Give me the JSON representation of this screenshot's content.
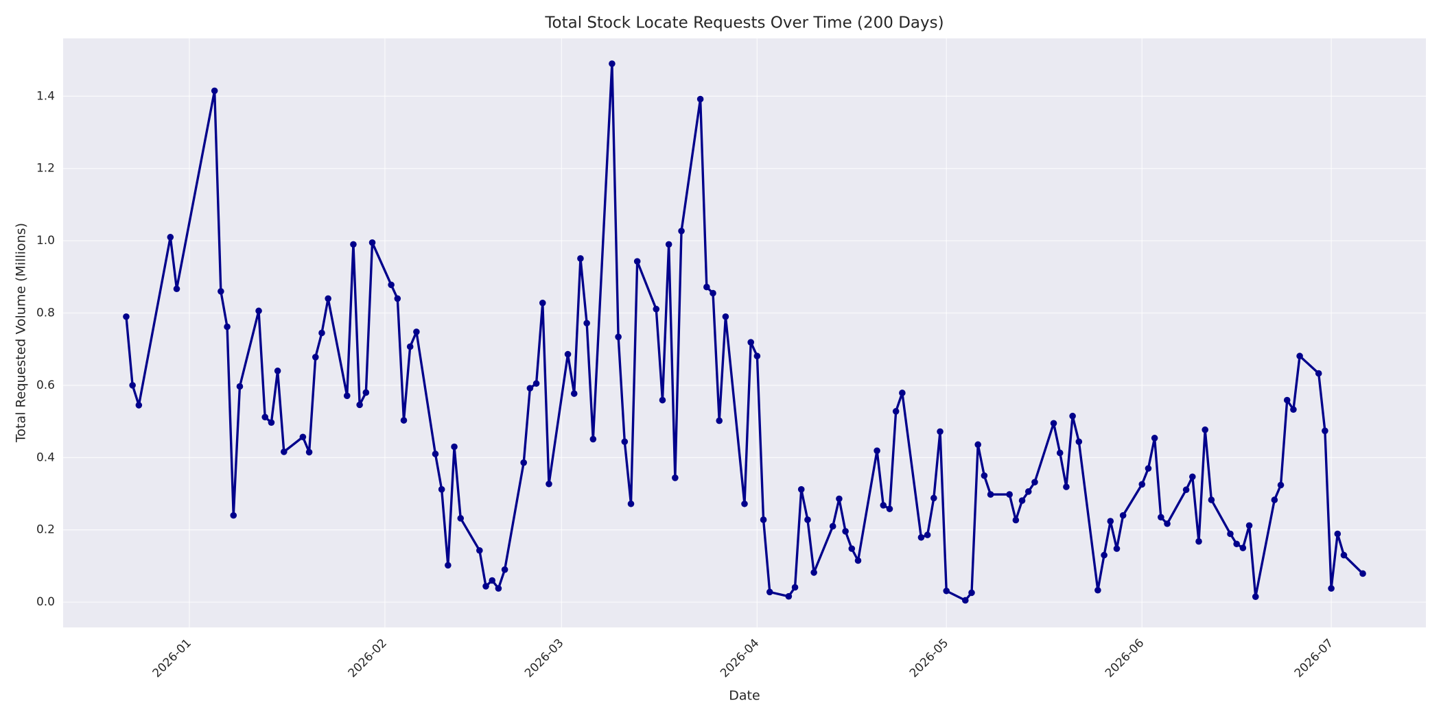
{
  "chart_data": {
    "type": "line",
    "title": "Total Stock Locate Requests Over Time (200 Days)",
    "x_label": "Date",
    "y_label": "Total Requested Volume (Millions)",
    "grid": true,
    "xlim": [
      "2025-12-12",
      "2026-07-16"
    ],
    "xticks": [
      {
        "value": "2026-01-01",
        "label": "2026-01"
      },
      {
        "value": "2026-02-01",
        "label": "2026-02"
      },
      {
        "value": "2026-03-01",
        "label": "2026-03"
      },
      {
        "value": "2026-04-01",
        "label": "2026-04"
      },
      {
        "value": "2026-05-01",
        "label": "2026-05"
      },
      {
        "value": "2026-06-01",
        "label": "2026-06"
      },
      {
        "value": "2026-07-01",
        "label": "2026-07"
      }
    ],
    "ylim": [
      -0.07,
      1.56
    ],
    "yticks": [
      {
        "value": 0,
        "label": "0.0"
      },
      0.2,
      0.4,
      0.6,
      0.8,
      {
        "value": 1,
        "label": "1.0"
      },
      1.2,
      1.4
    ],
    "x": [
      "2025-12-22",
      "2025-12-23",
      "2025-12-24",
      "2025-12-29",
      "2025-12-30",
      "2026-01-05",
      "2026-01-06",
      "2026-01-07",
      "2026-01-08",
      "2026-01-09",
      "2026-01-12",
      "2026-01-13",
      "2026-01-14",
      "2026-01-15",
      "2026-01-16",
      "2026-01-19",
      "2026-01-20",
      "2026-01-21",
      "2026-01-22",
      "2026-01-23",
      "2026-01-26",
      "2026-01-27",
      "2026-01-28",
      "2026-01-29",
      "2026-01-30",
      "2026-02-02",
      "2026-02-03",
      "2026-02-04",
      "2026-02-05",
      "2026-02-06",
      "2026-02-09",
      "2026-02-10",
      "2026-02-11",
      "2026-02-12",
      "2026-02-13",
      "2026-02-16",
      "2026-02-17",
      "2026-02-18",
      "2026-02-19",
      "2026-02-20",
      "2026-02-23",
      "2026-02-24",
      "2026-02-25",
      "2026-02-26",
      "2026-02-27",
      "2026-03-02",
      "2026-03-03",
      "2026-03-04",
      "2026-03-05",
      "2026-03-06",
      "2026-03-09",
      "2026-03-10",
      "2026-03-11",
      "2026-03-12",
      "2026-03-13",
      "2026-03-16",
      "2026-03-17",
      "2026-03-18",
      "2026-03-19",
      "2026-03-20",
      "2026-03-23",
      "2026-03-24",
      "2026-03-25",
      "2026-03-26",
      "2026-03-27",
      "2026-03-30",
      "2026-03-31",
      "2026-04-01",
      "2026-04-02",
      "2026-04-03",
      "2026-04-06",
      "2026-04-07",
      "2026-04-08",
      "2026-04-09",
      "2026-04-10",
      "2026-04-13",
      "2026-04-14",
      "2026-04-15",
      "2026-04-16",
      "2026-04-17",
      "2026-04-20",
      "2026-04-21",
      "2026-04-22",
      "2026-04-23",
      "2026-04-24",
      "2026-04-27",
      "2026-04-28",
      "2026-04-29",
      "2026-04-30",
      "2026-05-01",
      "2026-05-04",
      "2026-05-05",
      "2026-05-06",
      "2026-05-07",
      "2026-05-08",
      "2026-05-11",
      "2026-05-12",
      "2026-05-13",
      "2026-05-14",
      "2026-05-15",
      "2026-05-18",
      "2026-05-19",
      "2026-05-20",
      "2026-05-21",
      "2026-05-22",
      "2026-05-25",
      "2026-05-26",
      "2026-05-27",
      "2026-05-28",
      "2026-05-29",
      "2026-06-01",
      "2026-06-02",
      "2026-06-03",
      "2026-06-04",
      "2026-06-05",
      "2026-06-08",
      "2026-06-09",
      "2026-06-10",
      "2026-06-11",
      "2026-06-12",
      "2026-06-15",
      "2026-06-16",
      "2026-06-17",
      "2026-06-18",
      "2026-06-19",
      "2026-06-22",
      "2026-06-23",
      "2026-06-24",
      "2026-06-25",
      "2026-06-26",
      "2026-06-29",
      "2026-06-30",
      "2026-07-01",
      "2026-07-02",
      "2026-07-03",
      "2026-07-06"
    ],
    "series": [
      {
        "color": "#00008b",
        "values": [
          0.79,
          0.6,
          0.545,
          1.01,
          0.867,
          1.415,
          0.86,
          0.762,
          0.24,
          0.597,
          0.806,
          0.512,
          0.497,
          0.64,
          0.416,
          0.457,
          0.415,
          0.678,
          0.745,
          0.84,
          0.571,
          0.99,
          0.546,
          0.58,
          0.995,
          0.878,
          0.84,
          0.503,
          0.707,
          0.748,
          0.41,
          0.312,
          0.102,
          0.43,
          0.232,
          0.143,
          0.044,
          0.06,
          0.038,
          0.09,
          0.386,
          0.592,
          0.605,
          0.828,
          0.327,
          0.686,
          0.577,
          0.951,
          0.772,
          0.451,
          1.49,
          0.734,
          0.444,
          0.272,
          0.943,
          0.811,
          0.559,
          0.99,
          0.344,
          1.027,
          1.392,
          0.872,
          0.855,
          0.502,
          0.79,
          0.272,
          0.719,
          0.681,
          0.228,
          0.028,
          0.016,
          0.041,
          0.312,
          0.228,
          0.082,
          0.21,
          0.286,
          0.196,
          0.148,
          0.115,
          0.419,
          0.268,
          0.258,
          0.528,
          0.579,
          0.179,
          0.186,
          0.288,
          0.472,
          0.031,
          0.005,
          0.026,
          0.436,
          0.35,
          0.298,
          0.298,
          0.227,
          0.281,
          0.306,
          0.332,
          0.495,
          0.413,
          0.319,
          0.515,
          0.444,
          0.033,
          0.13,
          0.224,
          0.148,
          0.24,
          0.326,
          0.37,
          0.454,
          0.235,
          0.217,
          0.311,
          0.347,
          0.168,
          0.477,
          0.283,
          0.189,
          0.161,
          0.15,
          0.212,
          0.015,
          0.283,
          0.324,
          0.559,
          0.533,
          0.681,
          0.633,
          0.474,
          0.038,
          0.189,
          0.13,
          0.079
        ]
      }
    ]
  }
}
